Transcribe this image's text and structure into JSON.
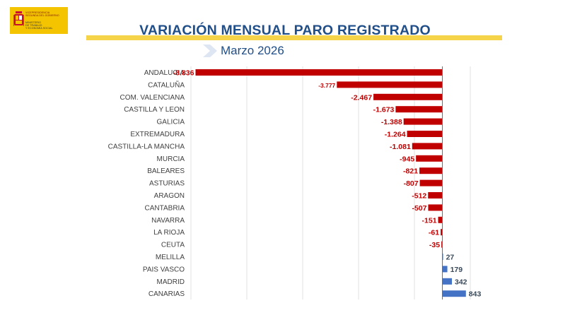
{
  "logo": {
    "line1": [
      "VICEPRESIDENCIA",
      "SEGUNDA DEL GOBIERNO"
    ],
    "line2": [
      "MINISTERIO",
      "DE TRABAJO",
      "Y ECONOMÍA SOCIAL"
    ]
  },
  "header": {
    "title": "VARIACIÓN MENSUAL PARO REGISTRADO",
    "subtitle": "Marzo 2026"
  },
  "colors": {
    "negative": "#c00000",
    "positive": "#4472c4",
    "title": "#1f4e89",
    "band": "#f5d44a",
    "labels": "#404040"
  },
  "chart_data": {
    "type": "bar",
    "orientation": "horizontal",
    "title": "VARIACIÓN MENSUAL PARO REGISTRADO",
    "subtitle": "Marzo 2026",
    "xlim": [
      -9000,
      1000
    ],
    "gridlines": true,
    "categories": [
      "ANDALUCIA",
      "CATALUÑA",
      "COM. VALENCIANA",
      "CASTILLA Y LEON",
      "GALICIA",
      "EXTREMADURA",
      "CASTILLA-LA MANCHA",
      "MURCIA",
      "BALEARES",
      "ASTURIAS",
      "ARAGON",
      "CANTABRIA",
      "NAVARRA",
      "LA RIOJA",
      "CEUTA",
      "MELILLA",
      "PAIS VASCO",
      "MADRID",
      "CANARIAS"
    ],
    "values": [
      -8836,
      -3777,
      -2467,
      -1673,
      -1388,
      -1264,
      -1081,
      -945,
      -821,
      -807,
      -512,
      -507,
      -151,
      -61,
      -35,
      27,
      179,
      342,
      843
    ],
    "labels": [
      "-8.836",
      "-3.777",
      "-2.467",
      "-1.673",
      "-1.388",
      "-1.264",
      "-1.081",
      "-945",
      "-821",
      "-807",
      "-512",
      "-507",
      "-151",
      "-61",
      "-35",
      "27",
      "179",
      "342",
      "843"
    ]
  }
}
